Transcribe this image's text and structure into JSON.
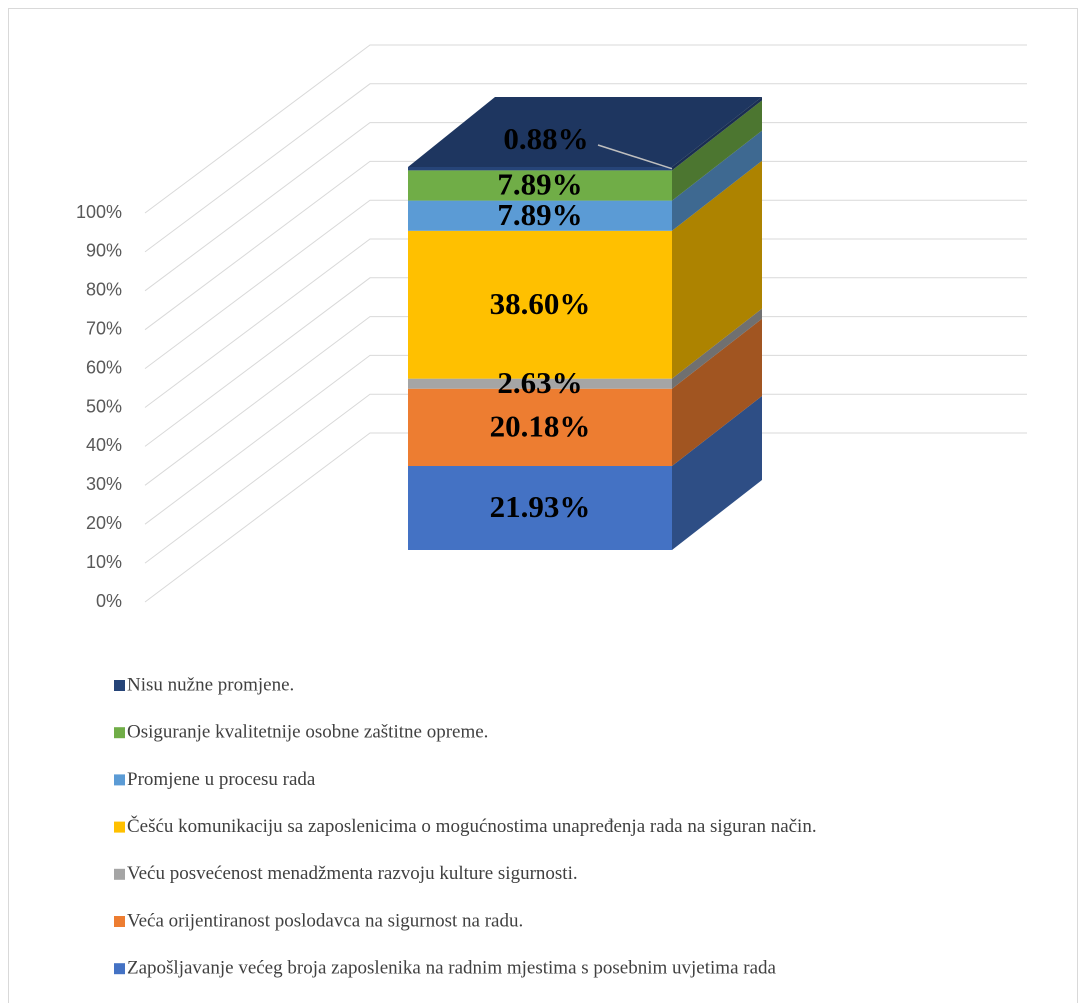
{
  "chart_data": {
    "type": "bar3d_stacked",
    "ylim": [
      0,
      100
    ],
    "yticks": [
      {
        "value": 0,
        "label": "0%"
      },
      {
        "value": 10,
        "label": "10%"
      },
      {
        "value": 20,
        "label": "20%"
      },
      {
        "value": 30,
        "label": "30%"
      },
      {
        "value": 40,
        "label": "40%"
      },
      {
        "value": 50,
        "label": "50%"
      },
      {
        "value": 60,
        "label": "60%"
      },
      {
        "value": 70,
        "label": "70%"
      },
      {
        "value": 80,
        "label": "80%"
      },
      {
        "value": 90,
        "label": "90%"
      },
      {
        "value": 100,
        "label": "100%"
      }
    ],
    "grid": true,
    "legend": "bottom",
    "series": [
      {
        "name": "Zapošljavanje većeg broja zaposlenika na radnim mjestima s posebnim uvjetima rada",
        "color": "#4472c4",
        "values": [
          21.93
        ],
        "value_labels": [
          "21.93%"
        ]
      },
      {
        "name": "Veća orijentiranost poslodavca na sigurnost na radu.",
        "color": "#ed7d31",
        "values": [
          20.18
        ],
        "value_labels": [
          "20.18%"
        ]
      },
      {
        "name": "Veću posvećenost menadžmenta razvoju kulture sigurnosti.",
        "color": "#a5a5a5",
        "values": [
          2.63
        ],
        "value_labels": [
          "2.63%"
        ]
      },
      {
        "name": "Češću komunikaciju sa zaposlenicima o mogućnostima unapređenja rada na siguran način.",
        "color": "#ffc000",
        "values": [
          38.6
        ],
        "value_labels": [
          "38.60%"
        ]
      },
      {
        "name": "Promjene u procesu rada",
        "color": "#5b9bd5",
        "values": [
          7.89
        ],
        "value_labels": [
          "7.89%"
        ]
      },
      {
        "name": "Osiguranje kvalitetnije osobne zaštitne opreme.",
        "color": "#70ad47",
        "values": [
          7.89
        ],
        "value_labels": [
          "7.89%"
        ]
      },
      {
        "name": "Nisu nužne promjene.",
        "color": "#264478",
        "values": [
          0.88
        ],
        "value_labels": [
          "0.88%"
        ]
      }
    ]
  }
}
